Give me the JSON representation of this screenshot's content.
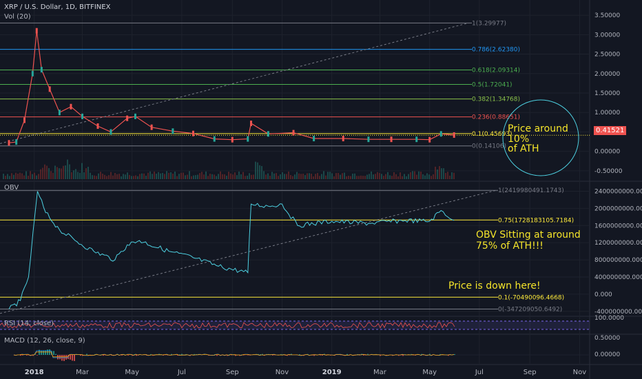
{
  "header": {
    "symbol": "XRP / U.S. Dollar, 1D, BITFINEX",
    "vol": "Vol (20)",
    "obv": "OBV",
    "rsi": "RSI (14, close)",
    "macd": "MACD (12, 26, close, 9)"
  },
  "colors": {
    "background": "#131722",
    "grid": "#1e222d",
    "price_line": "#4dd0e1",
    "up": "#26a69a",
    "down": "#ef5350",
    "annotation": "#f5e52a",
    "circle": "#4dd0e1",
    "rsi": "#ef5350",
    "rsi_band": "#7b68ee"
  },
  "time_axis": [
    "2018",
    "Mar",
    "May",
    "Jul",
    "Sep",
    "Nov",
    "2019",
    "Mar",
    "May",
    "Jul",
    "Sep",
    "Nov"
  ],
  "price_axis": [
    "3.50000",
    "3.00000",
    "2.50000",
    "2.00000",
    "1.50000",
    "1.00000",
    "0.50000",
    "0.00000",
    "-0.50000"
  ],
  "current_price": "0.41521",
  "price_fib": [
    {
      "label": "1(3.29977)",
      "value": 3.29977,
      "color": "#787b86"
    },
    {
      "label": "0.786(2.62380)",
      "value": 2.6238,
      "color": "#2196f3"
    },
    {
      "label": "0.618(2.09314)",
      "value": 2.09314,
      "color": "#4caf50"
    },
    {
      "label": "0.5(1.72041)",
      "value": 1.72041,
      "color": "#4caf50"
    },
    {
      "label": "0.382(1.34768)",
      "value": 1.34768,
      "color": "#8bc34a"
    },
    {
      "label": "0.236(0.88651)",
      "value": 0.88651,
      "color": "#ef5350"
    },
    {
      "label": "0.1(0.45693)",
      "value": 0.45693,
      "color": "#ffeb3b"
    },
    {
      "label": "0(0.14106)",
      "value": 0.14106,
      "color": "#787b86"
    }
  ],
  "obv_axis": [
    "2400000000.000",
    "2000000000.000",
    "1600000000.000",
    "1200000000.000",
    "800000000.000",
    "400000000.000",
    "0.000",
    "-400000000.000"
  ],
  "obv_fib": [
    {
      "label": "1(2419980491.1743)",
      "value": 2419980491.1743,
      "color": "#787b86"
    },
    {
      "label": "0.75(1728183105.7184)",
      "value": 1728183105.7184,
      "color": "#ffeb3b"
    },
    {
      "label": "0.1(-70490096.4668)",
      "value": -70490096.4668,
      "color": "#ffeb3b"
    },
    {
      "label": "0(-347209050.6492)",
      "value": -347209050.6492,
      "color": "#787b86"
    }
  ],
  "rsi_axis": [
    "100.0000"
  ],
  "macd_axis": [
    "0.50000",
    "0.00000"
  ],
  "notes": {
    "price_around": "Price around",
    "pct": "10%",
    "of_ath": "of ATH",
    "obv_sitting": "OBV Sitting at around",
    "obv_pct": "75% of ATH!!!",
    "price_down": "Price is down here!"
  },
  "chart_data": {
    "type": "line",
    "title": "XRP / U.S. Dollar, 1D, BITFINEX",
    "price": {
      "x": [
        "2017-12-01",
        "2017-12-10",
        "2017-12-20",
        "2017-12-30",
        "2018-01-04",
        "2018-01-10",
        "2018-01-20",
        "2018-02-01",
        "2018-02-15",
        "2018-03-01",
        "2018-03-20",
        "2018-04-05",
        "2018-04-25",
        "2018-05-05",
        "2018-05-25",
        "2018-06-20",
        "2018-07-15",
        "2018-08-10",
        "2018-09-01",
        "2018-09-20",
        "2018-09-24",
        "2018-10-15",
        "2018-11-15",
        "2018-12-10",
        "2019-01-15",
        "2019-02-15",
        "2019-03-15",
        "2019-04-15",
        "2019-05-01",
        "2019-05-15",
        "2019-05-31"
      ],
      "y": [
        0.22,
        0.24,
        0.8,
        2.0,
        3.1,
        2.1,
        1.6,
        1.0,
        1.15,
        0.9,
        0.65,
        0.5,
        0.85,
        0.9,
        0.62,
        0.52,
        0.46,
        0.32,
        0.3,
        0.32,
        0.72,
        0.45,
        0.48,
        0.33,
        0.33,
        0.31,
        0.31,
        0.31,
        0.3,
        0.45,
        0.42
      ],
      "ylim": [
        -0.75,
        3.75
      ]
    },
    "obv": {
      "x": [
        "2017-12-01",
        "2017-12-15",
        "2017-12-25",
        "2018-01-05",
        "2018-01-15",
        "2018-02-01",
        "2018-02-20",
        "2018-03-15",
        "2018-04-10",
        "2018-04-25",
        "2018-05-10",
        "2018-06-15",
        "2018-07-15",
        "2018-08-15",
        "2018-09-20",
        "2018-09-24",
        "2018-10-15",
        "2018-11-01",
        "2018-11-20",
        "2019-01-01",
        "2019-02-15",
        "2019-04-01",
        "2019-05-01",
        "2019-05-15",
        "2019-05-31"
      ],
      "y": [
        -350000000,
        -150000000,
        400000000,
        2400000000,
        1900000000,
        1500000000,
        1250000000,
        1000000000,
        800000000,
        1150000000,
        1250000000,
        1000000000,
        850000000,
        650000000,
        500000000,
        2100000000,
        2050000000,
        2100000000,
        1600000000,
        1700000000,
        1650000000,
        1720000000,
        1700000000,
        1950000000,
        1720000000
      ],
      "ylim": [
        -500000000,
        2600000000
      ]
    }
  }
}
